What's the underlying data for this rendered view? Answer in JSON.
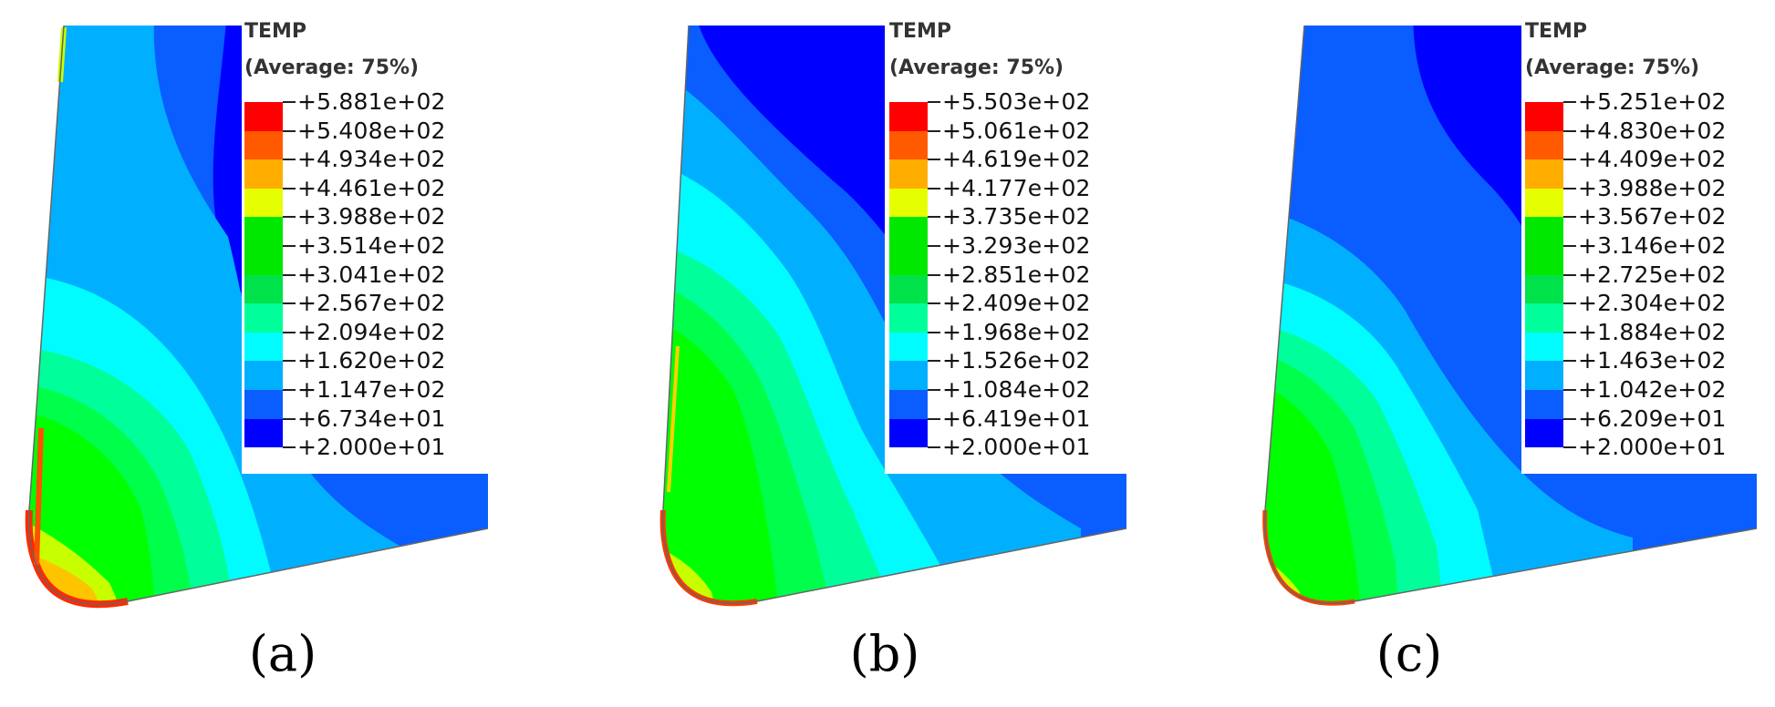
{
  "colors": [
    "#0000ff",
    "#0a5dff",
    "#00b0ff",
    "#00fcff",
    "#00ff9a",
    "#00ff4a",
    "#00ff00",
    "#00e800",
    "#c8ff00",
    "#ffc400",
    "#ff7a00",
    "#ff0000"
  ],
  "panels": [
    {
      "title": "TEMP",
      "subtitle": "(Average: 75%)",
      "levels": [
        "+5.881e+02",
        "+5.408e+02",
        "+4.934e+02",
        "+4.461e+02",
        "+3.988e+02",
        "+3.514e+02",
        "+3.041e+02",
        "+2.567e+02",
        "+2.094e+02",
        "+1.620e+02",
        "+1.147e+02",
        "+6.734e+01",
        "+2.000e+01"
      ],
      "caption": "(a)"
    },
    {
      "title": "TEMP",
      "subtitle": "(Average: 75%)",
      "levels": [
        "+5.503e+02",
        "+5.061e+02",
        "+4.619e+02",
        "+4.177e+02",
        "+3.735e+02",
        "+3.293e+02",
        "+2.851e+02",
        "+2.409e+02",
        "+1.968e+02",
        "+1.526e+02",
        "+1.084e+02",
        "+6.419e+01",
        "+2.000e+01"
      ],
      "caption": "(b)"
    },
    {
      "title": "TEMP",
      "subtitle": "(Average: 75%)",
      "levels": [
        "+5.251e+02",
        "+4.830e+02",
        "+4.409e+02",
        "+3.988e+02",
        "+3.567e+02",
        "+3.146e+02",
        "+2.725e+02",
        "+2.304e+02",
        "+1.884e+02",
        "+1.463e+02",
        "+1.042e+02",
        "+6.209e+01",
        "+2.000e+01"
      ],
      "caption": "(c)"
    }
  ]
}
